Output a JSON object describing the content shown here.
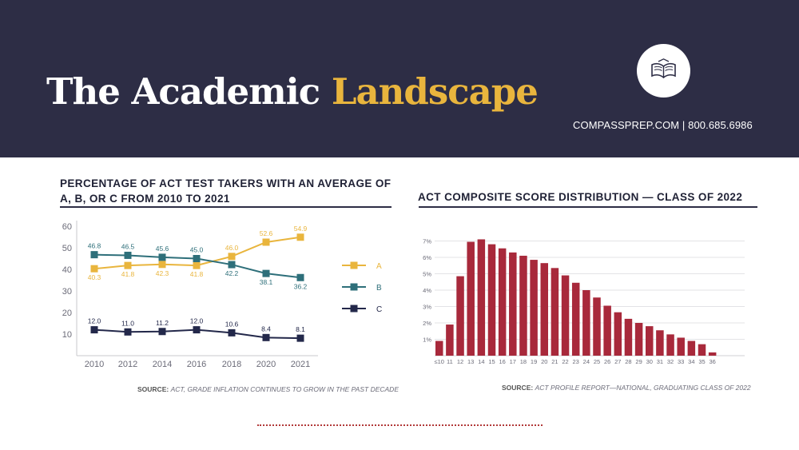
{
  "header": {
    "title_main": "The Academic",
    "title_accent": "Landscape",
    "contact": "COMPASSPREP.COM  |  800.685.6986",
    "logo_icon": "open-book-icon"
  },
  "colors": {
    "navy": "#2d2d45",
    "gold": "#e9b53d",
    "teal": "#2e6f7a",
    "dark_navy": "#23284a",
    "bar_red": "#a8293b"
  },
  "line_section": {
    "title": "PERCENTAGE OF ACT TEST TAKERS WITH AN AVERAGE OF A, B, OR C FROM 2010 TO 2021",
    "source_label": "SOURCE:",
    "source_text": "ACT, GRADE INFLATION CONTINUES TO GROW IN THE PAST DECADE"
  },
  "bar_section": {
    "title": "ACT COMPOSITE SCORE DISTRIBUTION — CLASS OF 2022",
    "source_label": "SOURCE:",
    "source_text": "ACT PROFILE REPORT—NATIONAL, GRADUATING CLASS OF 2022"
  },
  "chart_data": [
    {
      "type": "line",
      "x": [
        "2010",
        "2012",
        "2014",
        "2016",
        "2018",
        "2020",
        "2021"
      ],
      "ylim": [
        0,
        60
      ],
      "yticks": [
        "10",
        "20",
        "30",
        "40",
        "50",
        "60"
      ],
      "grid": false,
      "legend_position": "right",
      "series": [
        {
          "name": "A",
          "color": "#e9b53d",
          "values": [
            40.3,
            41.8,
            42.3,
            41.8,
            46.0,
            52.6,
            54.9
          ],
          "labels": [
            "40.3",
            "41.8",
            "42.3",
            "41.8",
            "46.0",
            "52.6",
            "54.9"
          ]
        },
        {
          "name": "B",
          "color": "#2e6f7a",
          "values": [
            46.8,
            46.5,
            45.6,
            45.0,
            42.2,
            38.1,
            36.2
          ],
          "labels": [
            "46.8",
            "46.5",
            "45.6",
            "45.0",
            "42.2",
            "38.1",
            "36.2"
          ]
        },
        {
          "name": "C",
          "color": "#23284a",
          "values": [
            12.0,
            11.0,
            11.2,
            12.0,
            10.6,
            8.4,
            8.1
          ],
          "labels": [
            "12.0",
            "11.0",
            "11.2",
            "12.0",
            "10.6",
            "8.4",
            "8.1"
          ]
        }
      ]
    },
    {
      "type": "bar",
      "categories": [
        "≤10",
        "11",
        "12",
        "13",
        "14",
        "15",
        "16",
        "17",
        "18",
        "19",
        "20",
        "21",
        "22",
        "23",
        "24",
        "25",
        "26",
        "27",
        "28",
        "29",
        "30",
        "31",
        "32",
        "33",
        "34",
        "35",
        "36"
      ],
      "values": [
        0.9,
        1.9,
        4.85,
        6.95,
        7.1,
        6.8,
        6.55,
        6.3,
        6.1,
        5.85,
        5.65,
        5.35,
        4.9,
        4.45,
        4.0,
        3.55,
        3.05,
        2.65,
        2.25,
        2.0,
        1.8,
        1.55,
        1.3,
        1.1,
        0.9,
        0.7,
        0.2
      ],
      "ylim": [
        0,
        7
      ],
      "yticks": [
        "1%",
        "2%",
        "3%",
        "4%",
        "5%",
        "6%",
        "7%"
      ],
      "grid": true,
      "color": "#a8293b"
    }
  ]
}
